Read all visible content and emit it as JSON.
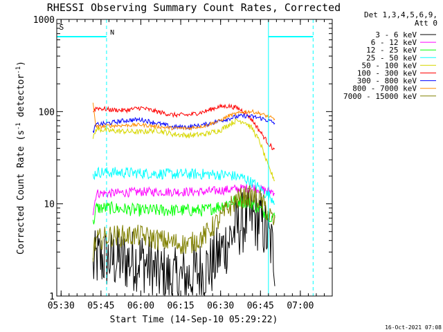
{
  "chart_data": {
    "type": "line",
    "title": "RHESSI Observing Summary Count Rates, Corrected",
    "xlabel": "Start Time (14-Sep-10 05:29:22)",
    "ylabel": "Corrected Count Rate (s⁻¹ detector⁻¹)",
    "y_scale": "log",
    "ylim": [
      1,
      1000
    ],
    "xlim": [
      5.4728,
      7.2
    ],
    "x_ticks": [
      {
        "t": 5.5,
        "label": "05:30"
      },
      {
        "t": 5.75,
        "label": "05:45"
      },
      {
        "t": 6.0,
        "label": "06:00"
      },
      {
        "t": 6.25,
        "label": "06:15"
      },
      {
        "t": 6.5,
        "label": "06:30"
      },
      {
        "t": 6.75,
        "label": "06:45"
      },
      {
        "t": 7.0,
        "label": "07:00"
      }
    ],
    "y_ticks": [
      {
        "v": 1,
        "label": "1"
      },
      {
        "v": 10,
        "label": "10"
      },
      {
        "v": 100,
        "label": "100"
      },
      {
        "v": 1000,
        "label": "1000"
      }
    ],
    "legend_header": [
      "Det 1,3,4,5,6,9,",
      "Att 0"
    ],
    "series": [
      {
        "name": "3 - 6 keV",
        "color": "#000000",
        "noise": 0.35,
        "x": [
          5.7,
          5.72,
          5.8,
          5.9,
          6.0,
          6.1,
          6.2,
          6.3,
          6.45,
          6.5,
          6.55,
          6.6,
          6.65,
          6.7,
          6.75,
          6.78,
          6.82,
          6.84
        ],
        "y": [
          2,
          2.5,
          2.5,
          2.4,
          2.5,
          1.8,
          1.5,
          1.6,
          2.2,
          3.0,
          4.0,
          5.5,
          6.5,
          7.0,
          6.5,
          5.0,
          3.5,
          2.5
        ]
      },
      {
        "name": "6 - 12 keV",
        "color": "#ff00ff",
        "noise": 0.05,
        "x": [
          5.7,
          5.72,
          5.8,
          6.0,
          6.2,
          6.4,
          6.6,
          6.7,
          6.78,
          6.84
        ],
        "y": [
          8,
          13,
          13,
          13.5,
          13.5,
          13.5,
          14.5,
          15,
          14,
          13.5
        ]
      },
      {
        "name": "12 - 25 keV",
        "color": "#00ff00",
        "noise": 0.07,
        "x": [
          5.7,
          5.72,
          5.8,
          6.0,
          6.2,
          6.3,
          6.4,
          6.5,
          6.6,
          6.7,
          6.78,
          6.84
        ],
        "y": [
          6,
          9,
          9,
          8.5,
          8.5,
          8.5,
          8.5,
          9.5,
          11,
          10,
          8,
          7
        ]
      },
      {
        "name": "25 - 50 keV",
        "color": "#00ffff",
        "noise": 0.06,
        "x": [
          5.7,
          5.72,
          5.8,
          6.0,
          6.2,
          6.4,
          6.55,
          6.65,
          6.72,
          6.78,
          6.84
        ],
        "y": [
          20,
          22,
          22,
          21.5,
          21,
          21,
          20.5,
          19,
          16,
          13,
          11
        ]
      },
      {
        "name": "50 - 100 keV",
        "color": "#d7d700",
        "noise": 0.03,
        "x": [
          5.7,
          5.72,
          5.8,
          6.0,
          6.1,
          6.2,
          6.3,
          6.4,
          6.5,
          6.55,
          6.6,
          6.65,
          6.7,
          6.75,
          6.8,
          6.84
        ],
        "y": [
          50,
          65,
          62,
          60,
          63,
          57,
          55,
          57,
          63,
          72,
          80,
          78,
          65,
          45,
          25,
          18
        ]
      },
      {
        "name": "100 - 300 keV",
        "color": "#ff0000",
        "noise": 0.025,
        "x": [
          5.7,
          5.72,
          5.8,
          5.9,
          6.0,
          6.1,
          6.2,
          6.3,
          6.4,
          6.48,
          6.55,
          6.6,
          6.65,
          6.7,
          6.75,
          6.8,
          6.84
        ],
        "y": [
          100,
          110,
          105,
          103,
          110,
          100,
          92,
          92,
          100,
          112,
          115,
          110,
          100,
          80,
          60,
          45,
          38
        ]
      },
      {
        "name": "300 - 800 keV",
        "color": "#0000ff",
        "noise": 0.025,
        "x": [
          5.7,
          5.72,
          5.8,
          5.9,
          6.0,
          6.1,
          6.2,
          6.3,
          6.4,
          6.5,
          6.6,
          6.65,
          6.7,
          6.75,
          6.8,
          6.84
        ],
        "y": [
          60,
          72,
          75,
          80,
          82,
          75,
          68,
          68,
          72,
          80,
          88,
          90,
          88,
          85,
          80,
          75
        ]
      },
      {
        "name": "800 - 7000 keV",
        "color": "#ff8c00",
        "noise": 0.02,
        "x": [
          5.7,
          5.72,
          5.8,
          6.0,
          6.2,
          6.3,
          6.4,
          6.5,
          6.55,
          6.6,
          6.65,
          6.7,
          6.75,
          6.8,
          6.84
        ],
        "y": [
          120,
          68,
          70,
          72,
          66,
          66,
          70,
          80,
          90,
          95,
          100,
          100,
          95,
          88,
          82
        ]
      },
      {
        "name": "7000 - 15000 keV",
        "color": "#808000",
        "noise": 0.12,
        "x": [
          5.7,
          5.72,
          5.8,
          6.0,
          6.2,
          6.3,
          6.4,
          6.5,
          6.55,
          6.6,
          6.65,
          6.7,
          6.75,
          6.8,
          6.84
        ],
        "y": [
          3,
          4,
          4.5,
          4.5,
          3.8,
          3.6,
          4.5,
          7,
          9,
          11,
          12,
          12,
          11,
          8,
          6
        ]
      }
    ],
    "markers": {
      "S": {
        "label": "S",
        "color": "#ff8c00",
        "t": 5.48
      },
      "N": {
        "label": "N",
        "color": "#00ffff",
        "t": 5.79
      },
      "night_segments": [
        {
          "t0": 5.4728,
          "t1": 5.785,
          "y": 650
        },
        {
          "t0": 6.8,
          "t1": 7.08,
          "y": 650
        }
      ],
      "vertical_solid": [
        6.8
      ],
      "vertical_dashed": [
        5.785,
        7.08
      ]
    }
  },
  "footer": {
    "timestamp": "16-Oct-2021 07:08"
  }
}
